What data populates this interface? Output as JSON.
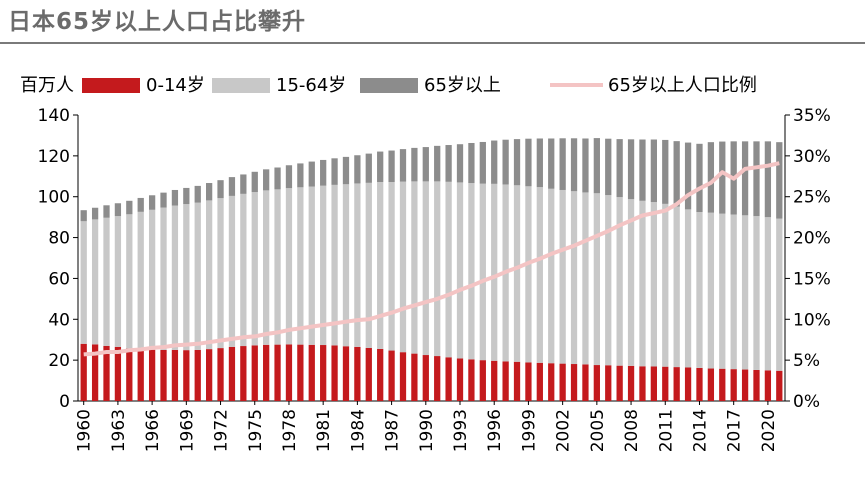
{
  "title": "日本65岁以上人口占比攀升",
  "chart_data": {
    "type": "bar",
    "stacked": true,
    "unit_left": "百万人",
    "years": [
      1960,
      1961,
      1962,
      1963,
      1964,
      1965,
      1966,
      1967,
      1968,
      1969,
      1970,
      1971,
      1972,
      1973,
      1974,
      1975,
      1976,
      1977,
      1978,
      1979,
      1980,
      1981,
      1982,
      1983,
      1984,
      1985,
      1986,
      1987,
      1988,
      1989,
      1990,
      1991,
      1992,
      1993,
      1994,
      1995,
      1996,
      1997,
      1998,
      1999,
      2000,
      2001,
      2002,
      2003,
      2004,
      2005,
      2006,
      2007,
      2008,
      2009,
      2010,
      2011,
      2012,
      2013,
      2014,
      2015,
      2016,
      2017,
      2018,
      2019,
      2020,
      2021
    ],
    "x_tick_labels": [
      "1960",
      "1963",
      "1966",
      "1969",
      "1972",
      "1975",
      "1978",
      "1981",
      "1984",
      "1987",
      "1990",
      "1993",
      "1996",
      "1999",
      "2002",
      "2005",
      "2008",
      "2011",
      "2014",
      "2017",
      "2020"
    ],
    "ylim_left": [
      0,
      140
    ],
    "y_ticks_left": [
      "0",
      "20",
      "40",
      "60",
      "80",
      "100",
      "120",
      "140"
    ],
    "ylim_right": [
      0,
      35
    ],
    "y_ticks_right": [
      "0%",
      "5%",
      "10%",
      "15%",
      "20%",
      "25%",
      "30%",
      "35%"
    ],
    "series": [
      {
        "name": "0-14岁",
        "color": "#c41a1d",
        "axis": "left",
        "values": [
          28.0,
          27.7,
          27.0,
          26.5,
          25.7,
          25.4,
          25.1,
          25.0,
          25.0,
          24.9,
          25.0,
          25.4,
          25.9,
          26.5,
          26.9,
          27.2,
          27.5,
          27.6,
          27.7,
          27.6,
          27.5,
          27.4,
          27.2,
          26.8,
          26.5,
          26.0,
          25.5,
          24.7,
          23.9,
          23.2,
          22.5,
          22.0,
          21.4,
          20.8,
          20.4,
          20.0,
          19.7,
          19.4,
          19.2,
          18.9,
          18.7,
          18.5,
          18.3,
          18.1,
          17.9,
          17.6,
          17.5,
          17.3,
          17.2,
          17.0,
          16.9,
          16.8,
          16.6,
          16.4,
          16.2,
          15.9,
          15.8,
          15.6,
          15.4,
          15.2,
          15.0,
          14.8
        ]
      },
      {
        "name": "15-64岁",
        "color": "#c8c8c8",
        "axis": "left",
        "values": [
          60.0,
          61.2,
          62.7,
          64.0,
          65.7,
          67.2,
          68.5,
          69.7,
          70.7,
          71.5,
          72.1,
          72.8,
          73.4,
          73.9,
          74.5,
          75.1,
          75.6,
          76.0,
          76.5,
          77.0,
          77.5,
          78.0,
          78.6,
          79.3,
          80.0,
          80.8,
          81.7,
          82.5,
          83.5,
          84.3,
          85.0,
          85.5,
          85.9,
          86.2,
          86.3,
          86.4,
          86.6,
          86.6,
          86.4,
          86.2,
          86.0,
          85.4,
          85.0,
          84.6,
          84.2,
          84.1,
          83.3,
          82.5,
          81.6,
          81.0,
          80.5,
          79.7,
          78.6,
          77.4,
          76.3,
          76.3,
          75.9,
          75.7,
          75.5,
          75.3,
          75.0,
          74.5
        ]
      },
      {
        "name": "65岁以上",
        "color": "#8c8c8c",
        "axis": "left",
        "values": [
          5.4,
          5.7,
          6.1,
          6.3,
          6.6,
          6.8,
          7.1,
          7.3,
          7.6,
          7.9,
          8.2,
          8.5,
          8.8,
          9.2,
          9.5,
          9.9,
          10.3,
          10.7,
          11.2,
          11.7,
          12.2,
          12.6,
          13.0,
          13.4,
          13.8,
          14.3,
          14.9,
          15.4,
          15.9,
          16.4,
          16.8,
          17.4,
          18.0,
          18.7,
          19.6,
          20.4,
          21.2,
          21.9,
          22.6,
          23.3,
          23.8,
          24.6,
          25.3,
          25.9,
          26.4,
          27.0,
          27.6,
          28.4,
          29.3,
          30.0,
          30.6,
          31.3,
          32.0,
          32.7,
          33.4,
          34.5,
          35.3,
          35.8,
          36.2,
          36.6,
          37.1,
          37.4
        ]
      },
      {
        "name": "65岁以上人口比例",
        "color": "#f4c4c4",
        "axis": "right",
        "type": "line",
        "values": [
          5.7,
          5.8,
          6.0,
          6.0,
          6.2,
          6.3,
          6.5,
          6.6,
          6.8,
          6.9,
          7.0,
          7.2,
          7.4,
          7.6,
          7.8,
          7.9,
          8.2,
          8.4,
          8.7,
          8.9,
          9.1,
          9.3,
          9.5,
          9.7,
          9.9,
          10.0,
          10.4,
          10.8,
          11.3,
          11.7,
          12.1,
          12.5,
          13.0,
          13.6,
          14.1,
          14.7,
          15.2,
          15.8,
          16.3,
          16.9,
          17.4,
          18.0,
          18.5,
          19.0,
          19.6,
          20.2,
          20.8,
          21.5,
          22.1,
          22.7,
          23.0,
          23.3,
          24.1,
          25.2,
          26.0,
          26.7,
          28.0,
          27.2,
          28.4,
          28.6,
          28.8,
          29.1
        ]
      }
    ],
    "legend_position": "top"
  }
}
